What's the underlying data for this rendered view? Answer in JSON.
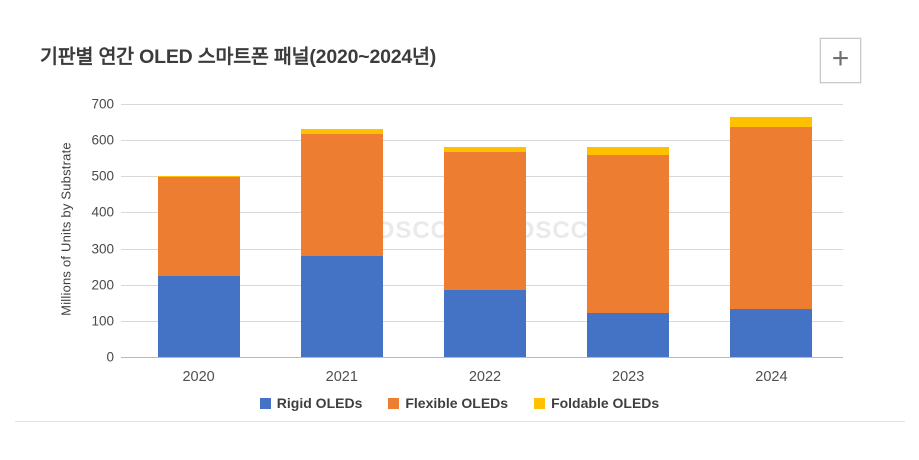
{
  "page": {
    "zoom_button_glyph": "+",
    "watermark": "DSCC"
  },
  "chart_data": {
    "type": "bar",
    "stacked": true,
    "title": "기판별 연간 OLED 스마트폰 패널(2020~2024년)",
    "xlabel": "",
    "ylabel": "Millions of Units by Substrate",
    "ylim": [
      0,
      700
    ],
    "ytick_step": 100,
    "grid": true,
    "legend_position": "bottom",
    "categories": [
      "2020",
      "2021",
      "2022",
      "2023",
      "2024"
    ],
    "series": [
      {
        "name": "Rigid OLEDs",
        "color": "#4472C4",
        "values": [
          225,
          280,
          184,
          122,
          133
        ]
      },
      {
        "name": "Flexible OLEDs",
        "color": "#ED7D31",
        "values": [
          274,
          338,
          382,
          438,
          503
        ]
      },
      {
        "name": "Foldable OLEDs",
        "color": "#FFC000",
        "values": [
          3,
          14,
          16,
          20,
          29
        ]
      }
    ],
    "totals": [
      502,
      632,
      582,
      580,
      665
    ]
  }
}
